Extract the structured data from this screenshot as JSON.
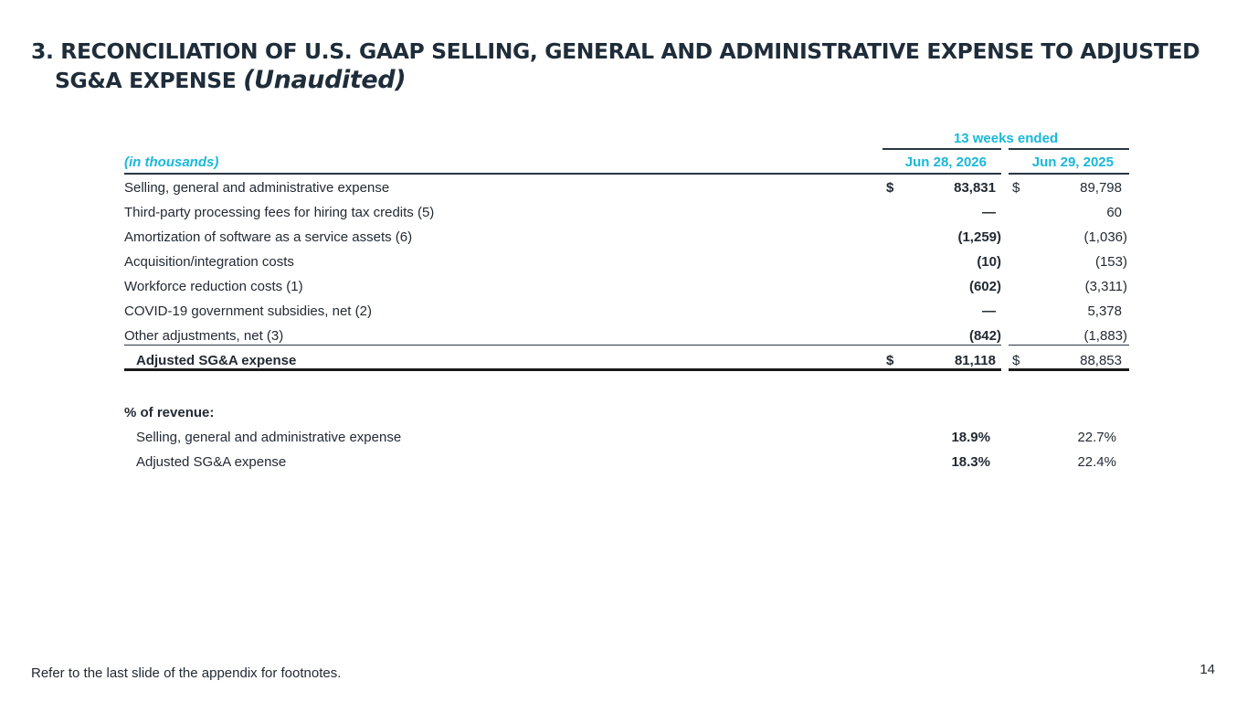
{
  "title": {
    "line1": "3. RECONCILIATION OF U.S. GAAP SELLING, GENERAL AND ADMINISTRATIVE EXPENSE TO ADJUSTED",
    "line2": "SG&A EXPENSE ",
    "line2_italic": "(Unaudited)"
  },
  "table": {
    "period_header": "13 weeks ended",
    "units_label": "(in thousands)",
    "col1_header": "Jun 28, 2026",
    "col2_header": "Jun 29, 2025",
    "currency": "$",
    "rows": [
      {
        "label": "Selling, general and administrative expense",
        "v1": "83,831",
        "v2": "89,798"
      },
      {
        "label": "Third-party processing fees for hiring tax credits (5)",
        "v1": "—",
        "v2": "60"
      },
      {
        "label": "Amortization of software as a service assets (6)",
        "v1": "(1,259)",
        "v2": "(1,036)"
      },
      {
        "label": "Acquisition/integration costs",
        "v1": "(10)",
        "v2": "(153)"
      },
      {
        "label": "Workforce reduction costs (1)",
        "v1": "(602)",
        "v2": "(3,311)"
      },
      {
        "label": "COVID-19 government subsidies, net (2)",
        "v1": "—",
        "v2": "5,378"
      },
      {
        "label": "Other adjustments, net (3)",
        "v1": "(842)",
        "v2": "(1,883)"
      }
    ],
    "total": {
      "label": "Adjusted SG&A expense",
      "v1": "81,118",
      "v2": "88,853"
    },
    "pct_header": "% of revenue:",
    "pct_rows": [
      {
        "label": "Selling, general and administrative expense",
        "v1": "18.9%",
        "v2": "22.7%"
      },
      {
        "label": "Adjusted SG&A expense",
        "v1": "18.3%",
        "v2": "22.4%"
      }
    ]
  },
  "footer": {
    "footnote": "Refer to the last slide of the appendix for footnotes.",
    "page_number": "14"
  }
}
